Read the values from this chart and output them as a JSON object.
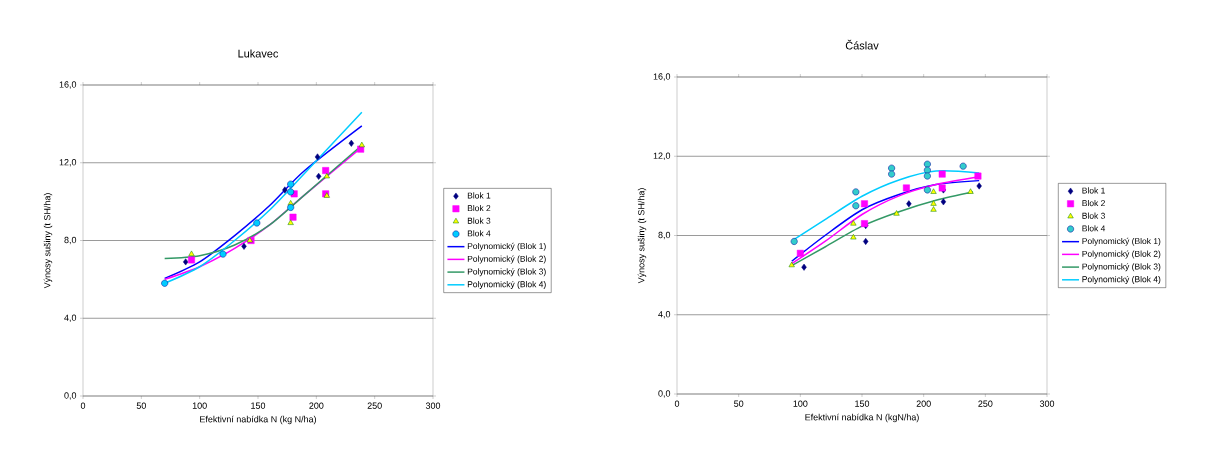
{
  "chart_data": [
    {
      "type": "scatter",
      "title": "Lukavec",
      "xlabel": "Efektivní nabídka N (kg N/ha)",
      "ylabel": "Výnosy sušiny (t SH/ha)",
      "xlim": [
        0,
        300
      ],
      "ylim": [
        0,
        16
      ],
      "xticks": [
        0,
        50,
        100,
        150,
        200,
        250,
        300
      ],
      "yticks": [
        {
          "value": 0,
          "label": "0,0"
        },
        {
          "value": 4,
          "label": "4,0"
        },
        {
          "value": 8,
          "label": "8,0"
        },
        {
          "value": 12,
          "label": "12,0"
        },
        {
          "value": 16,
          "label": "16,0"
        }
      ],
      "grid": "y",
      "legend": "right",
      "series": [
        {
          "name": "Blok 1",
          "marker": "diamond",
          "color": "#000080",
          "x": [
            88,
            138,
            173,
            201,
            202,
            230
          ],
          "values": [
            6.9,
            7.7,
            10.6,
            12.3,
            11.3,
            13.0
          ]
        },
        {
          "name": "Blok 2",
          "marker": "square",
          "color": "#ff00ff",
          "x": [
            93,
            144,
            180,
            181,
            208,
            208,
            238
          ],
          "values": [
            7.0,
            8.0,
            9.2,
            10.4,
            11.6,
            10.4,
            12.7
          ]
        },
        {
          "name": "Blok 3",
          "marker": "triangle",
          "color": "#ffff00",
          "x": [
            93,
            143,
            178,
            178,
            209,
            209,
            239
          ],
          "values": [
            7.3,
            8.0,
            8.9,
            9.9,
            10.3,
            11.3,
            12.9
          ]
        },
        {
          "name": "Blok 4",
          "marker": "circle",
          "color": "#00ccff",
          "x": [
            70,
            120,
            149,
            178,
            178,
            178
          ],
          "values": [
            5.8,
            7.3,
            8.9,
            10.9,
            10.5,
            9.7
          ]
        },
        {
          "name": "Polynomický (Blok 1)",
          "type": "line",
          "marker": "none",
          "color": "#0000ff",
          "x": [
            70,
            100,
            130,
            160,
            190,
            239
          ],
          "values": [
            6.05,
            6.9,
            8.25,
            9.8,
            11.6,
            13.9
          ]
        },
        {
          "name": "Polynomický (Blok 2)",
          "type": "line",
          "marker": "none",
          "color": "#ff00ff",
          "x": [
            70,
            100,
            130,
            160,
            190,
            238
          ],
          "values": [
            6.0,
            6.65,
            7.6,
            8.8,
            10.35,
            12.75
          ]
        },
        {
          "name": "Polynomický (Blok 3)",
          "type": "line",
          "marker": "none",
          "color": "#339966",
          "x": [
            70,
            100,
            130,
            160,
            190,
            239
          ],
          "values": [
            7.08,
            7.22,
            7.77,
            8.8,
            10.35,
            12.9
          ]
        },
        {
          "name": "Polynomický (Blok 4)",
          "type": "line",
          "marker": "none",
          "color": "#00ccff",
          "x": [
            70,
            100,
            130,
            160,
            190,
            239
          ],
          "values": [
            5.8,
            6.65,
            8.0,
            9.57,
            11.46,
            14.6
          ]
        }
      ]
    },
    {
      "type": "scatter",
      "title": "Čáslav",
      "xlabel": "Efektivní nabídka N (kgN/ha)",
      "ylabel": "Výnosy sušiny (t SH/ha)",
      "xlim": [
        0,
        300
      ],
      "ylim": [
        0,
        16
      ],
      "xticks": [
        0,
        50,
        100,
        150,
        200,
        250,
        300
      ],
      "yticks": [
        {
          "value": 0,
          "label": "0,0"
        },
        {
          "value": 4,
          "label": "4,0"
        },
        {
          "value": 8,
          "label": "8,0"
        },
        {
          "value": 12,
          "label": "12,0"
        },
        {
          "value": 16,
          "label": "16,0"
        }
      ],
      "grid": "y",
      "legend": "right",
      "series": [
        {
          "name": "Blok 1",
          "marker": "diamond",
          "color": "#000080",
          "x": [
            103,
            153,
            153,
            188,
            216,
            216,
            245
          ],
          "values": [
            6.4,
            7.7,
            8.5,
            9.6,
            9.7,
            10.3,
            10.5
          ]
        },
        {
          "name": "Blok 2",
          "marker": "square",
          "color": "#ff00ff",
          "x": [
            100,
            152,
            152,
            186,
            215,
            215,
            244
          ],
          "values": [
            7.1,
            9.6,
            8.6,
            10.4,
            11.1,
            10.4,
            11.0
          ]
        },
        {
          "name": "Blok 3",
          "marker": "triangle",
          "color": "#ffff00",
          "x": [
            93,
            143,
            143,
            178,
            208,
            208,
            208,
            238
          ],
          "values": [
            6.5,
            8.6,
            7.9,
            9.1,
            10.2,
            9.6,
            9.3,
            10.2
          ]
        },
        {
          "name": "Blok 4",
          "marker": "circle",
          "color": "#33cccc",
          "x": [
            95,
            145,
            145,
            174,
            174,
            203,
            203,
            203,
            203,
            232
          ],
          "values": [
            7.7,
            10.2,
            9.5,
            11.4,
            11.1,
            11.6,
            11.3,
            11.0,
            10.3,
            11.5
          ]
        },
        {
          "name": "Polynomický (Blok 1)",
          "type": "line",
          "marker": "none",
          "color": "#0000ff",
          "x": [
            93,
            120,
            150,
            180,
            210,
            245
          ],
          "values": [
            6.7,
            8.0,
            9.3,
            10.07,
            10.57,
            10.77
          ]
        },
        {
          "name": "Polynomický (Blok 2)",
          "type": "line",
          "marker": "none",
          "color": "#ff00ff",
          "x": [
            93,
            120,
            150,
            180,
            210,
            245
          ],
          "values": [
            6.58,
            7.7,
            9.06,
            10.0,
            10.57,
            10.96
          ]
        },
        {
          "name": "Polynomický (Blok 3)",
          "type": "line",
          "marker": "none",
          "color": "#339966",
          "x": [
            93,
            120,
            150,
            180,
            210,
            240
          ],
          "values": [
            6.48,
            7.42,
            8.47,
            9.2,
            9.78,
            10.2
          ]
        },
        {
          "name": "Polynomický (Blok 4)",
          "type": "line",
          "marker": "none",
          "color": "#00ccff",
          "x": [
            95,
            120,
            150,
            180,
            210,
            245
          ],
          "values": [
            7.8,
            8.8,
            9.98,
            10.8,
            11.25,
            11.16
          ]
        }
      ]
    }
  ]
}
